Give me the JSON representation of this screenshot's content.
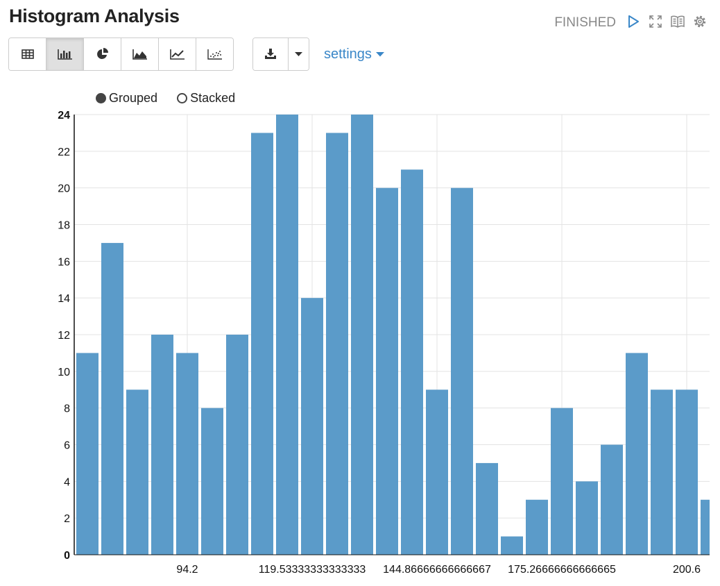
{
  "header": {
    "title": "Histogram Analysis",
    "status": "FINISHED"
  },
  "toolbar": {
    "view_buttons": [
      {
        "icon": "table-icon"
      },
      {
        "icon": "bar-chart-icon",
        "active": true
      },
      {
        "icon": "pie-chart-icon"
      },
      {
        "icon": "area-chart-icon"
      },
      {
        "icon": "line-chart-icon"
      },
      {
        "icon": "scatter-chart-icon"
      }
    ],
    "download_icon": "download-icon",
    "settings_label": "settings"
  },
  "legend": {
    "grouped_label": "Grouped",
    "stacked_label": "Stacked",
    "selected": "Grouped"
  },
  "colors": {
    "bar": "#5b9bc9",
    "accent": "#3a87c8",
    "grid": "#e3e3e3"
  },
  "chart_data": {
    "type": "bar",
    "values": [
      11,
      17,
      9,
      12,
      11,
      8,
      12,
      23,
      24,
      14,
      23,
      24,
      20,
      21,
      9,
      20,
      5,
      1,
      3,
      8,
      4,
      6,
      11,
      9,
      9,
      3
    ],
    "x_tick_labels": [
      "94.2",
      "119.53333333333333",
      "144.86666666666667",
      "175.26666666666665",
      "200.6"
    ],
    "y_ticks": [
      0,
      2,
      4,
      6,
      8,
      10,
      12,
      14,
      16,
      18,
      20,
      22,
      24
    ],
    "ylim": [
      0,
      24
    ],
    "grid": true
  }
}
